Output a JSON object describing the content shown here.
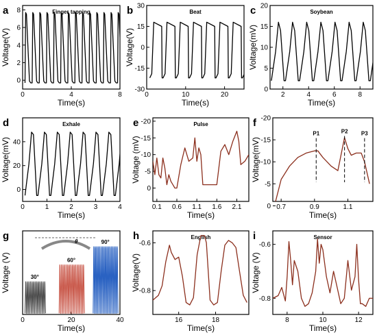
{
  "chart_data": [
    {
      "panel": "a",
      "type": "line",
      "title": "Finger tapping",
      "xlabel": "Time(s)",
      "ylabel": "Voltage(V)",
      "xlim": [
        0,
        8
      ],
      "ylim": [
        -1,
        8.5
      ],
      "xticks": [
        0,
        4,
        8
      ],
      "yticks": [
        0,
        2,
        4,
        6,
        8
      ],
      "x_start": 0.2,
      "x_end": 7.9,
      "period": 0.585,
      "high": 7.7,
      "low": -0.3,
      "color": "#000000"
    },
    {
      "panel": "b",
      "type": "line",
      "title": "Beat",
      "xlabel": "Time(s)",
      "ylabel": "Voltage(V)",
      "xlim": [
        0,
        25
      ],
      "ylim": [
        -30,
        30
      ],
      "xticks": [
        0,
        10,
        20
      ],
      "yticks": [
        -30,
        -15,
        0,
        15,
        30
      ],
      "x_start": 0.8,
      "x_end": 24.6,
      "period": 3.4,
      "high": 18,
      "low": -22,
      "color": "#000000"
    },
    {
      "panel": "c",
      "type": "line",
      "title": "Soybean",
      "xlabel": "Time(s)",
      "ylabel": "Voltage(mV)",
      "xlim": [
        1,
        9
      ],
      "ylim": [
        0,
        20
      ],
      "xticks": [
        2,
        4,
        6,
        8
      ],
      "yticks": [
        0,
        5,
        10,
        15,
        20
      ],
      "x_start": 1.1,
      "x_end": 8.9,
      "period": 1.1,
      "high": 16,
      "low": 2,
      "color": "#000000"
    },
    {
      "panel": "d",
      "type": "line",
      "title": "Exhale",
      "xlabel": "Time(s)",
      "ylabel": "Voltage(mV)",
      "xlim": [
        0,
        4
      ],
      "ylim": [
        -10,
        60
      ],
      "xticks": [
        0,
        1,
        2,
        3,
        4
      ],
      "yticks": [
        0,
        20,
        40
      ],
      "x_start": 0.1,
      "x_end": 3.95,
      "period": 0.53,
      "high": 48,
      "low": -5,
      "color": "#000000"
    },
    {
      "panel": "e",
      "type": "line",
      "title": "Pulse",
      "xlabel": "Time(s)",
      "ylabel": "Voltage (mV)",
      "xlim": [
        0,
        2.4
      ],
      "ylim": [
        4,
        -21
      ],
      "yinverted": true,
      "xticks": [
        0.1,
        0.6,
        1.1,
        1.6,
        2.1
      ],
      "yticks": [
        -20,
        -15,
        -10,
        -5,
        0
      ],
      "color": "#8b2e1c",
      "x": [
        0.0,
        0.05,
        0.1,
        0.15,
        0.2,
        0.25,
        0.3,
        0.35,
        0.4,
        0.45,
        0.5,
        0.55,
        0.6,
        0.7,
        0.8,
        0.9,
        1.0,
        1.05,
        1.1,
        1.15,
        1.2,
        1.25,
        1.3,
        1.4,
        1.5,
        1.6,
        1.7,
        1.8,
        1.9,
        2.0,
        2.1,
        2.15,
        2.2,
        2.3,
        2.4
      ],
      "y": [
        -8,
        -4,
        -9,
        -4,
        -3,
        -9,
        -6,
        -1,
        -4,
        -2,
        -1,
        0,
        0,
        -7,
        -12,
        -8,
        -9,
        -15,
        -8,
        -12,
        -10,
        -1,
        -1,
        -1,
        -1,
        -1,
        -11,
        -13,
        -10,
        -14,
        -17,
        -14,
        -7,
        -8,
        -10
      ]
    },
    {
      "panel": "f",
      "type": "line",
      "title": "",
      "xlabel": "Time(s)",
      "ylabel": "Voltage(mV)",
      "xlim": [
        0.65,
        1.25
      ],
      "ylim": [
        -1,
        -20
      ],
      "yinverted": true,
      "xticks": [
        0.7,
        0.9,
        1.1
      ],
      "yticks": [
        -20,
        -15,
        -10,
        -5,
        0
      ],
      "color": "#8b2e1c",
      "x": [
        0.66,
        0.7,
        0.75,
        0.8,
        0.85,
        0.9,
        0.92,
        0.95,
        1.0,
        1.04,
        1.08,
        1.1,
        1.12,
        1.15,
        1.18,
        1.2,
        1.23
      ],
      "y": [
        0,
        -6,
        -9,
        -11,
        -12,
        -12.5,
        -12.5,
        -11,
        -9,
        -8,
        -15.5,
        -13,
        -11.5,
        -12,
        -12,
        -10,
        -5
      ],
      "annotations": [
        {
          "label": "P1",
          "x": 0.91,
          "y": -16
        },
        {
          "label": "P2",
          "x": 1.08,
          "y": -16.5
        },
        {
          "label": "P3",
          "x": 1.2,
          "y": -16
        }
      ]
    },
    {
      "panel": "g",
      "type": "line",
      "title": "",
      "xlabel": "Time(s)",
      "ylabel": "Voltage (V)",
      "xlim": [
        0,
        40
      ],
      "ylim": [
        0,
        37
      ],
      "xticks": [
        0,
        20,
        40
      ],
      "yticks": [],
      "series": [
        {
          "name": "30°",
          "color": "#4a4a4a",
          "x_start": 1,
          "x_end": 9,
          "period": 0.65,
          "high": 14.5
        },
        {
          "name": "60°",
          "color": "#c9584a",
          "x_start": 15,
          "x_end": 25,
          "period": 0.65,
          "high": 22
        },
        {
          "name": "90°",
          "color": "#2a62c2",
          "x_start": 29,
          "x_end": 39,
          "period": 0.6,
          "high": 30
        }
      ],
      "inset_label": "θ"
    },
    {
      "panel": "h",
      "type": "line",
      "title": "English",
      "xlabel": "Time(s)",
      "ylabel": "Voltage(V)",
      "xlim": [
        14.6,
        19.8
      ],
      "ylim": [
        -0.9,
        -0.55
      ],
      "xticks": [
        16,
        18
      ],
      "yticks": [
        -0.8,
        -0.6
      ],
      "color": "#8b2e1c",
      "x": [
        14.6,
        14.9,
        15.1,
        15.3,
        15.5,
        15.6,
        15.8,
        16.0,
        16.2,
        16.4,
        16.6,
        16.8,
        17.0,
        17.2,
        17.4,
        17.5,
        17.7,
        17.9,
        18.1,
        18.3,
        18.5,
        18.7,
        18.9,
        19.1,
        19.3,
        19.5,
        19.7
      ],
      "y": [
        -0.84,
        -0.82,
        -0.78,
        -0.68,
        -0.61,
        -0.64,
        -0.67,
        -0.66,
        -0.74,
        -0.85,
        -0.86,
        -0.83,
        -0.65,
        -0.57,
        -0.57,
        -0.6,
        -0.84,
        -0.86,
        -0.85,
        -0.72,
        -0.61,
        -0.59,
        -0.6,
        -0.62,
        -0.72,
        -0.82,
        -0.85
      ]
    },
    {
      "panel": "i",
      "type": "line",
      "title": "Sensor",
      "xlabel": "Time(s)",
      "ylabel": "Voltage (V)",
      "xlim": [
        7.2,
        12.8
      ],
      "ylim": [
        -0.86,
        -0.55
      ],
      "xticks": [
        8,
        10,
        12
      ],
      "yticks": [
        -0.8,
        -0.6
      ],
      "color": "#8b2e1c",
      "x": [
        7.2,
        7.5,
        7.7,
        7.9,
        8.0,
        8.1,
        8.2,
        8.3,
        8.4,
        8.6,
        8.8,
        9.0,
        9.2,
        9.4,
        9.6,
        9.7,
        9.8,
        9.9,
        10.0,
        10.2,
        10.4,
        10.6,
        10.8,
        11.0,
        11.2,
        11.4,
        11.6,
        11.8,
        11.9,
        12.0,
        12.1,
        12.2,
        12.4,
        12.6,
        12.8
      ],
      "y": [
        -0.8,
        -0.79,
        -0.76,
        -0.81,
        -0.72,
        -0.59,
        -0.66,
        -0.75,
        -0.66,
        -0.7,
        -0.8,
        -0.83,
        -0.82,
        -0.78,
        -0.7,
        -0.58,
        -0.67,
        -0.6,
        -0.62,
        -0.72,
        -0.78,
        -0.7,
        -0.76,
        -0.82,
        -0.8,
        -0.66,
        -0.77,
        -0.72,
        -0.6,
        -0.73,
        -0.82,
        -0.82,
        -0.83,
        -0.8,
        -0.8
      ]
    }
  ]
}
